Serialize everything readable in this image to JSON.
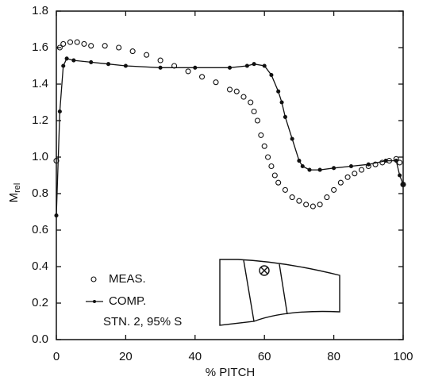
{
  "chart_data": {
    "type": "line",
    "x_label": "% PITCH",
    "y_label": "M",
    "y_label_subscript": "rel",
    "annotation": "STN. 2, 95% S",
    "xlim": [
      0,
      100
    ],
    "xticks": [
      0,
      20,
      40,
      60,
      80,
      100
    ],
    "ylim": [
      0,
      1.8
    ],
    "yticks": [
      {
        "value": 0,
        "label": "0.0"
      },
      0.2,
      0.4,
      0.6,
      0.8,
      {
        "value": 1,
        "label": "1.0"
      },
      1.2,
      1.4,
      1.6,
      1.8
    ],
    "series": [
      {
        "name": "MEAS.",
        "color": "#111111",
        "marker": "open-circle",
        "x": [
          0,
          1,
          2,
          4,
          6,
          8,
          10,
          14,
          18,
          22,
          26,
          30,
          34,
          38,
          42,
          46,
          50,
          52,
          54,
          56,
          57,
          58,
          59,
          60,
          61,
          62,
          63,
          64,
          66,
          68,
          70,
          72,
          74,
          76,
          78,
          80,
          82,
          84,
          86,
          88,
          90,
          92,
          94,
          96,
          98,
          99,
          100
        ],
        "values": [
          0.98,
          1.6,
          1.62,
          1.63,
          1.63,
          1.62,
          1.61,
          1.61,
          1.6,
          1.58,
          1.56,
          1.53,
          1.5,
          1.47,
          1.44,
          1.41,
          1.37,
          1.36,
          1.33,
          1.3,
          1.25,
          1.2,
          1.12,
          1.06,
          1.0,
          0.95,
          0.9,
          0.86,
          0.82,
          0.78,
          0.76,
          0.74,
          0.73,
          0.74,
          0.78,
          0.82,
          0.86,
          0.89,
          0.91,
          0.93,
          0.95,
          0.96,
          0.97,
          0.98,
          0.99,
          0.97,
          0.85
        ]
      },
      {
        "name": "COMP.",
        "color": "#111111",
        "marker": "line-dot",
        "x": [
          0,
          1,
          2,
          3,
          5,
          10,
          15,
          20,
          30,
          40,
          50,
          55,
          57,
          60,
          62,
          64,
          65,
          66,
          68,
          70,
          71,
          73,
          76,
          80,
          85,
          90,
          95,
          98,
          99,
          100
        ],
        "values": [
          0.68,
          1.25,
          1.5,
          1.54,
          1.53,
          1.52,
          1.51,
          1.5,
          1.49,
          1.49,
          1.49,
          1.5,
          1.51,
          1.5,
          1.45,
          1.36,
          1.3,
          1.22,
          1.1,
          0.98,
          0.95,
          0.93,
          0.93,
          0.94,
          0.95,
          0.96,
          0.98,
          0.98,
          0.9,
          0.85
        ]
      }
    ]
  }
}
